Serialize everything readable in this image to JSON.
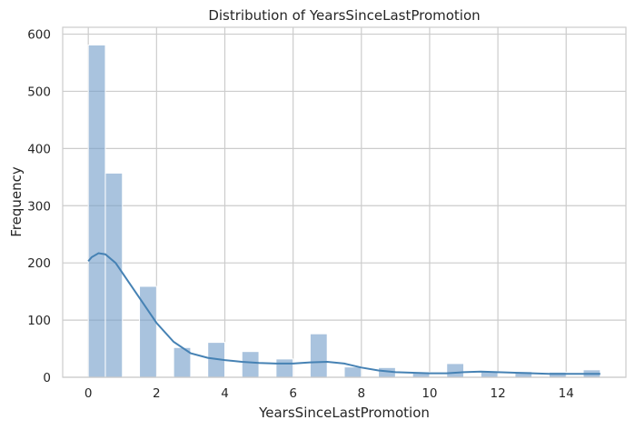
{
  "chart_data": {
    "type": "histogram",
    "title": "Distribution of YearsSinceLastPromotion",
    "xlabel": "YearsSinceLastPromotion",
    "ylabel": "Frequency",
    "xlim": [
      -0.75,
      15.75
    ],
    "ylim": [
      0,
      612
    ],
    "xticks": [
      0,
      2,
      4,
      6,
      8,
      10,
      12,
      14
    ],
    "yticks": [
      0,
      100,
      200,
      300,
      400,
      500,
      600
    ],
    "grid": true,
    "colors": {
      "bar": "#6f9bc8",
      "kde": "#4682b4"
    },
    "bins": [
      {
        "x0": 0.0,
        "x1": 0.5,
        "count": 581
      },
      {
        "x0": 0.5,
        "x1": 1.0,
        "count": 357
      },
      {
        "x0": 1.0,
        "x1": 1.5,
        "count": 0
      },
      {
        "x0": 1.5,
        "x1": 2.0,
        "count": 159
      },
      {
        "x0": 2.0,
        "x1": 2.5,
        "count": 0
      },
      {
        "x0": 2.5,
        "x1": 3.0,
        "count": 52
      },
      {
        "x0": 3.0,
        "x1": 3.5,
        "count": 0
      },
      {
        "x0": 3.5,
        "x1": 4.0,
        "count": 61
      },
      {
        "x0": 4.0,
        "x1": 4.5,
        "count": 0
      },
      {
        "x0": 4.5,
        "x1": 5.0,
        "count": 45
      },
      {
        "x0": 5.0,
        "x1": 5.5,
        "count": 0
      },
      {
        "x0": 5.5,
        "x1": 6.0,
        "count": 32
      },
      {
        "x0": 6.0,
        "x1": 6.5,
        "count": 0
      },
      {
        "x0": 6.5,
        "x1": 7.0,
        "count": 76
      },
      {
        "x0": 7.0,
        "x1": 7.5,
        "count": 0
      },
      {
        "x0": 7.5,
        "x1": 8.0,
        "count": 18
      },
      {
        "x0": 8.0,
        "x1": 8.5,
        "count": 0
      },
      {
        "x0": 8.5,
        "x1": 9.0,
        "count": 17
      },
      {
        "x0": 9.0,
        "x1": 9.5,
        "count": 0
      },
      {
        "x0": 9.5,
        "x1": 10.0,
        "count": 9
      },
      {
        "x0": 10.0,
        "x1": 10.5,
        "count": 0
      },
      {
        "x0": 10.5,
        "x1": 11.0,
        "count": 24
      },
      {
        "x0": 11.0,
        "x1": 11.5,
        "count": 0
      },
      {
        "x0": 11.5,
        "x1": 12.0,
        "count": 10
      },
      {
        "x0": 12.0,
        "x1": 12.5,
        "count": 0
      },
      {
        "x0": 12.5,
        "x1": 13.0,
        "count": 10
      },
      {
        "x0": 13.0,
        "x1": 13.5,
        "count": 0
      },
      {
        "x0": 13.5,
        "x1": 14.0,
        "count": 9
      },
      {
        "x0": 14.0,
        "x1": 14.5,
        "count": 0
      },
      {
        "x0": 14.5,
        "x1": 15.0,
        "count": 13
      }
    ],
    "kde": {
      "x": [
        0,
        0.1,
        0.3,
        0.5,
        0.8,
        1.2,
        1.6,
        2.0,
        2.5,
        3.0,
        3.5,
        4.0,
        4.5,
        5.0,
        5.5,
        6.0,
        6.5,
        7.0,
        7.5,
        8.0,
        8.5,
        9.0,
        9.5,
        10.0,
        10.5,
        11.0,
        11.5,
        12.0,
        12.5,
        13.0,
        13.5,
        14.0,
        14.5,
        15.0
      ],
      "y": [
        203,
        210,
        217,
        215,
        200,
        165,
        130,
        95,
        62,
        42,
        34,
        30,
        27,
        25,
        24,
        24,
        26,
        27,
        24,
        17,
        12,
        9,
        8,
        7,
        7,
        9,
        10,
        9,
        8,
        7,
        6,
        6,
        6,
        6
      ]
    }
  }
}
